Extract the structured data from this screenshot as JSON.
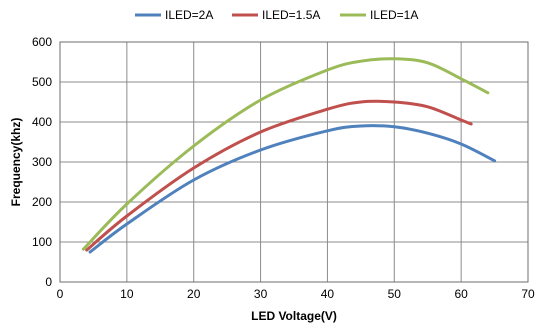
{
  "chart_data": {
    "type": "line",
    "xlabel": "LED Voltage(V)",
    "ylabel": "Frequency(khz)",
    "xlim": [
      0,
      70
    ],
    "ylim": [
      0,
      600
    ],
    "xticks": [
      0,
      10,
      20,
      30,
      40,
      50,
      60,
      70
    ],
    "yticks": [
      0,
      100,
      200,
      300,
      400,
      500,
      600
    ],
    "grid": true,
    "legend_position": "top",
    "series": [
      {
        "name": "ILED=2A",
        "color": "#4f81bd",
        "points": [
          [
            4.5,
            75
          ],
          [
            10,
            145
          ],
          [
            20,
            255
          ],
          [
            30,
            330
          ],
          [
            40,
            378
          ],
          [
            45,
            390
          ],
          [
            50,
            388
          ],
          [
            55,
            372
          ],
          [
            60,
            345
          ],
          [
            65,
            303
          ]
        ]
      },
      {
        "name": "ILED=1.5A",
        "color": "#c0504d",
        "points": [
          [
            4,
            80
          ],
          [
            10,
            165
          ],
          [
            20,
            285
          ],
          [
            30,
            375
          ],
          [
            40,
            432
          ],
          [
            45,
            450
          ],
          [
            50,
            450
          ],
          [
            55,
            438
          ],
          [
            60,
            405
          ],
          [
            61.5,
            395
          ]
        ]
      },
      {
        "name": "ILED=1A",
        "color": "#9bbb59",
        "points": [
          [
            3.5,
            82
          ],
          [
            10,
            195
          ],
          [
            20,
            340
          ],
          [
            30,
            455
          ],
          [
            40,
            530
          ],
          [
            45,
            552
          ],
          [
            50,
            558
          ],
          [
            55,
            548
          ],
          [
            60,
            508
          ],
          [
            64,
            473
          ]
        ]
      }
    ]
  }
}
